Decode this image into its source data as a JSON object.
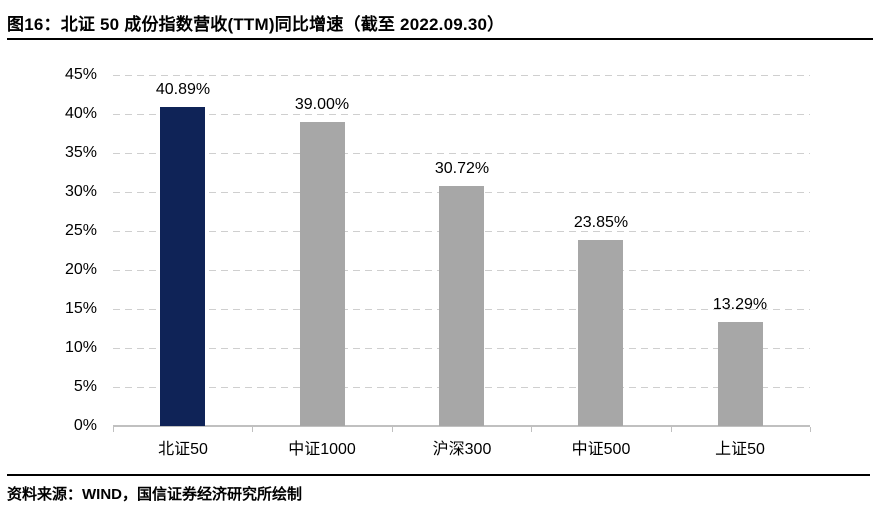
{
  "figure": {
    "title": "图16：北证 50 成份指数营收(TTM)同比增速（截至 2022.09.30）",
    "source": "资料来源：WIND，国信证券经济研究所绘制"
  },
  "colors": {
    "highlight_bar": "#0f2357",
    "default_bar": "#a7a7a7",
    "gridline": "#cfcfcf",
    "axis_line": "#c0c0c0",
    "text": "#000000",
    "divider": "#000000"
  },
  "chart_data": {
    "type": "bar",
    "title": "北证 50 成份指数营收(TTM)同比增速（截至 2022.09.30）",
    "categories": [
      "北证50",
      "中证1000",
      "沪深300",
      "中证500",
      "上证50"
    ],
    "values": [
      40.89,
      39.0,
      30.72,
      23.85,
      13.29
    ],
    "value_labels": [
      "40.89%",
      "39.00%",
      "30.72%",
      "23.85%",
      "13.29%"
    ],
    "highlight_index": 0,
    "xlabel": "",
    "ylabel": "",
    "ylim": [
      0,
      45
    ],
    "ytick_step": 5,
    "ytick_suffix": "%",
    "grid": "horizontal-dashed",
    "legend": "none"
  }
}
